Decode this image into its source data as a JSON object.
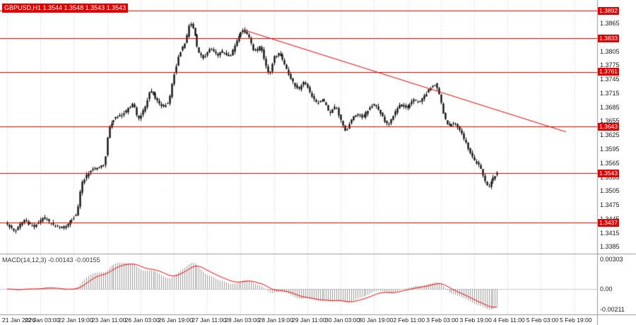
{
  "header": {
    "title": "GBPUSD,H1 1.3544 1.3548 1.3543 1.3543"
  },
  "chart_data": {
    "type": "candlestick",
    "symbol": "GBPUSD",
    "timeframe": "H1",
    "title": "GBPUSD,H1 1.3544 1.3548 1.3543 1.3543",
    "x_labels": [
      "21 Jan 2026",
      "22 Jan 03:00",
      "22 Jan 19:00",
      "23 Jan 11:00",
      "26 Jan 03:00",
      "26 Jan 19:00",
      "27 Jan 11:00",
      "28 Jan 03:00",
      "28 Jan 19:00",
      "29 Jan 11:00",
      "30 Jan 03:00",
      "30 Jan 19:00",
      "2 Feb 11:00",
      "3 Feb 03:00",
      "3 Feb 19:00",
      "4 Feb 11:00",
      "5 Feb 03:00",
      "5 Feb 19:00"
    ],
    "bars_per_label": 16,
    "total_bars": 284,
    "last_bar": 235,
    "ylim": [
      1.3372,
      1.3915
    ],
    "price_ticks": [
      "1.3865",
      "1.3835",
      "1.3805",
      "1.3775",
      "1.3745",
      "1.3715",
      "1.3685",
      "1.3655",
      "1.3625",
      "1.3595",
      "1.3565",
      "1.3535",
      "1.3505",
      "1.3475",
      "1.3445",
      "1.3415",
      "1.3385"
    ],
    "price_lines": [
      "1.3892",
      "1.3833",
      "1.3761",
      "1.3643",
      "1.3543",
      "1.3437"
    ],
    "trendline": {
      "from_bar": 114,
      "from_price": 1.385,
      "to_bar": 268,
      "to_price": 1.3632
    },
    "candle_noise": 0.0005,
    "wick_extra": 0.0006,
    "price_anchors": [
      [
        0,
        1.3435
      ],
      [
        4,
        1.3418
      ],
      [
        8,
        1.3442
      ],
      [
        13,
        1.3428
      ],
      [
        18,
        1.3448
      ],
      [
        23,
        1.343
      ],
      [
        28,
        1.3426
      ],
      [
        31,
        1.3442
      ],
      [
        34,
        1.3455
      ],
      [
        36,
        1.352
      ],
      [
        40,
        1.3548
      ],
      [
        44,
        1.3556
      ],
      [
        47,
        1.356
      ],
      [
        49,
        1.364
      ],
      [
        52,
        1.3662
      ],
      [
        56,
        1.3668
      ],
      [
        59,
        1.3685
      ],
      [
        61,
        1.3692
      ],
      [
        63,
        1.3658
      ],
      [
        66,
        1.368
      ],
      [
        69,
        1.3724
      ],
      [
        72,
        1.3702
      ],
      [
        75,
        1.3685
      ],
      [
        78,
        1.3696
      ],
      [
        80,
        1.3748
      ],
      [
        83,
        1.38
      ],
      [
        86,
        1.3828
      ],
      [
        88,
        1.3868
      ],
      [
        90,
        1.3852
      ],
      [
        92,
        1.3802
      ],
      [
        95,
        1.379
      ],
      [
        98,
        1.3812
      ],
      [
        101,
        1.3796
      ],
      [
        104,
        1.3806
      ],
      [
        107,
        1.3792
      ],
      [
        110,
        1.382
      ],
      [
        113,
        1.3852
      ],
      [
        116,
        1.384
      ],
      [
        119,
        1.3802
      ],
      [
        122,
        1.3816
      ],
      [
        124,
        1.3782
      ],
      [
        126,
        1.3752
      ],
      [
        128,
        1.379
      ],
      [
        131,
        1.3802
      ],
      [
        134,
        1.3772
      ],
      [
        137,
        1.3742
      ],
      [
        140,
        1.3722
      ],
      [
        143,
        1.374
      ],
      [
        146,
        1.3712
      ],
      [
        149,
        1.3692
      ],
      [
        152,
        1.3702
      ],
      [
        155,
        1.3672
      ],
      [
        158,
        1.3686
      ],
      [
        161,
        1.3652
      ],
      [
        163,
        1.363
      ],
      [
        165,
        1.3656
      ],
      [
        168,
        1.3672
      ],
      [
        171,
        1.3662
      ],
      [
        174,
        1.3682
      ],
      [
        177,
        1.3692
      ],
      [
        180,
        1.3668
      ],
      [
        183,
        1.3644
      ],
      [
        186,
        1.367
      ],
      [
        189,
        1.3692
      ],
      [
        192,
        1.3682
      ],
      [
        195,
        1.3702
      ],
      [
        198,
        1.3694
      ],
      [
        201,
        1.3712
      ],
      [
        204,
        1.373
      ],
      [
        206,
        1.3736
      ],
      [
        208,
        1.3702
      ],
      [
        210,
        1.3664
      ],
      [
        212,
        1.3642
      ],
      [
        215,
        1.3652
      ],
      [
        218,
        1.3632
      ],
      [
        221,
        1.3602
      ],
      [
        224,
        1.3572
      ],
      [
        227,
        1.356
      ],
      [
        229,
        1.3532
      ],
      [
        231,
        1.3512
      ],
      [
        233,
        1.3528
      ],
      [
        235,
        1.3543
      ]
    ],
    "macd": {
      "label": "MACD(14,12,3) -0.00143 -0.00155",
      "max_value": 0.00303,
      "min_value": -0.00211,
      "ylim": [
        -0.0026,
        0.0034
      ],
      "ticks": [
        {
          "v": 0.00303,
          "label": "0.00303"
        },
        {
          "v": 0,
          "label": "0.00"
        },
        {
          "v": -0.00211,
          "label": "-0.00211"
        }
      ]
    },
    "colors": {
      "line_red": "#e80000",
      "chip_red": "#df0000",
      "signal": "#ff0000",
      "histogram": "#9a9a9a",
      "grid": "#d2d2d2",
      "candle": "#111111",
      "border": "#9a9a9a"
    }
  }
}
